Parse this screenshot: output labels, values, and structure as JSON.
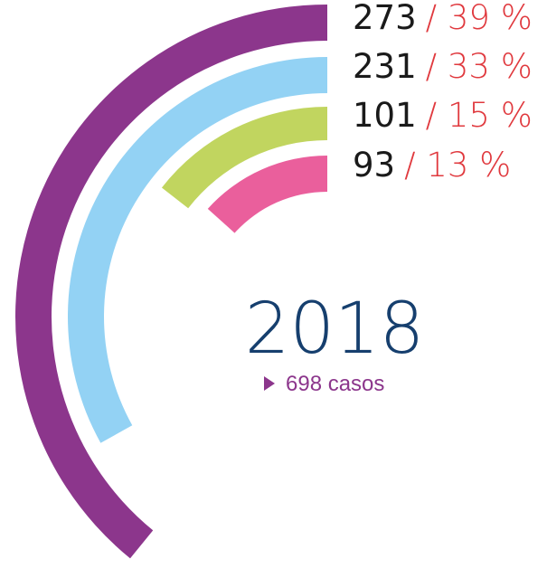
{
  "chart_data": {
    "type": "radial_bar",
    "title": "2018",
    "total": 698,
    "total_label": "698 casos",
    "values": [
      273,
      231,
      101,
      93
    ],
    "percents": [
      39,
      33,
      15,
      13
    ],
    "percent_labels": [
      "/ 39 %",
      "/ 33 %",
      "/ 15 %",
      "/ 13 %"
    ],
    "colors": [
      "#8c368c",
      "#93d2f4",
      "#c1d55f",
      "#ea5f9c"
    ]
  }
}
